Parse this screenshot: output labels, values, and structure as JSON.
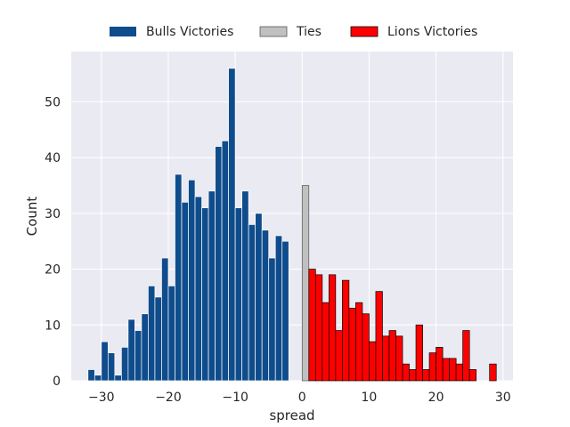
{
  "chart_data": {
    "type": "bar",
    "xlabel": "spread",
    "ylabel": "Count",
    "xlim": [
      -34.5,
      31.5
    ],
    "ylim": [
      0,
      59
    ],
    "xticks": [
      -30,
      -20,
      -10,
      0,
      10,
      20,
      30
    ],
    "yticks": [
      0,
      10,
      20,
      30,
      40,
      50
    ],
    "xtick_labels": [
      "−30",
      "−20",
      "−10",
      "0",
      "10",
      "20",
      "30"
    ],
    "ytick_labels": [
      "0",
      "10",
      "20",
      "30",
      "40",
      "50"
    ],
    "grid": true,
    "background": "#eaeaf2",
    "legend_position": "top-center",
    "series": [
      {
        "name": "Bulls Victories",
        "color": "#0f4c8c",
        "edge_color": "#ffffff",
        "x": [
          -32,
          -31,
          -30,
          -29,
          -28,
          -27,
          -26,
          -25,
          -24,
          -23,
          -22,
          -21,
          -20,
          -19,
          -18,
          -17,
          -16,
          -15,
          -14,
          -13,
          -12,
          -11,
          -10,
          -9,
          -8,
          -7,
          -6,
          -5,
          -4,
          -3,
          -2,
          -1
        ],
        "values": [
          2,
          1,
          7,
          5,
          1,
          6,
          11,
          9,
          12,
          17,
          15,
          22,
          17,
          37,
          32,
          36,
          33,
          31,
          34,
          42,
          43,
          56,
          31,
          34,
          28,
          30,
          27,
          22,
          26,
          25,
          0,
          0
        ]
      },
      {
        "name": "Ties",
        "color": "#c0c0c0",
        "edge_color": "#555555",
        "x": [
          0
        ],
        "values": [
          35
        ]
      },
      {
        "name": "Lions Victories",
        "color": "#ff0000",
        "edge_color": "#000000",
        "x": [
          1,
          2,
          3,
          4,
          5,
          6,
          7,
          8,
          9,
          10,
          11,
          12,
          13,
          14,
          15,
          16,
          17,
          18,
          19,
          20,
          21,
          22,
          23,
          24,
          25,
          26,
          27,
          28
        ],
        "values": [
          20,
          19,
          14,
          19,
          9,
          18,
          13,
          14,
          12,
          7,
          16,
          8,
          9,
          8,
          3,
          2,
          10,
          2,
          5,
          6,
          4,
          4,
          3,
          9,
          2,
          0,
          0,
          3
        ]
      }
    ]
  }
}
